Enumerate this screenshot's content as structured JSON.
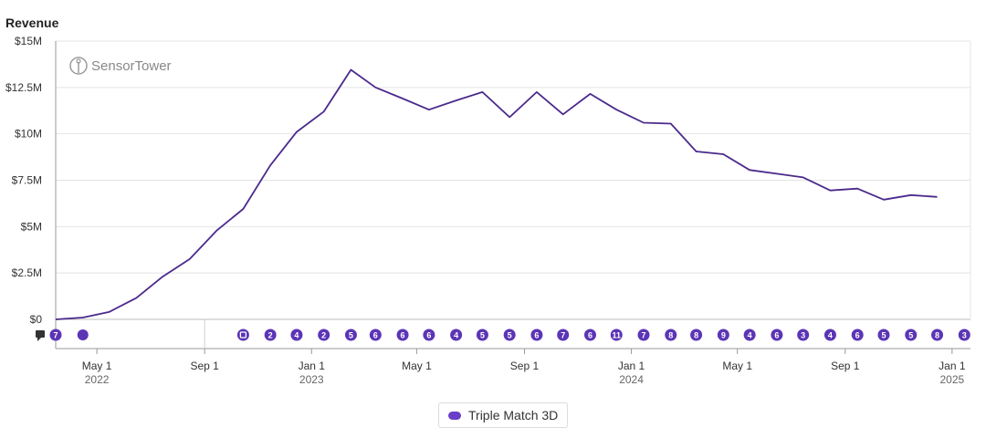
{
  "chart_data": {
    "type": "line",
    "title": "Revenue",
    "watermark": "SensorTower",
    "ylim": [
      0,
      15000000
    ],
    "yticks": [
      {
        "value": 0,
        "label": "$0"
      },
      {
        "value": 2500000,
        "label": "$2.5M"
      },
      {
        "value": 5000000,
        "label": "$5M"
      },
      {
        "value": 7500000,
        "label": "$7.5M"
      },
      {
        "value": 10000000,
        "label": "$10M"
      },
      {
        "value": 12500000,
        "label": "$12.5M"
      },
      {
        "value": 15000000,
        "label": "$15M"
      }
    ],
    "xlim": [
      "2022-03-15",
      "2025-01-22"
    ],
    "xticks": [
      {
        "date": "2022-05-01",
        "label": "May 1",
        "year": "2022"
      },
      {
        "date": "2022-09-01",
        "label": "Sep 1",
        "year": ""
      },
      {
        "date": "2023-01-01",
        "label": "Jan 1",
        "year": "2023"
      },
      {
        "date": "2023-05-01",
        "label": "May 1",
        "year": ""
      },
      {
        "date": "2023-09-01",
        "label": "Sep 1",
        "year": ""
      },
      {
        "date": "2024-01-01",
        "label": "Jan 1",
        "year": "2024"
      },
      {
        "date": "2024-05-01",
        "label": "May 1",
        "year": ""
      },
      {
        "date": "2024-09-01",
        "label": "Sep 1",
        "year": ""
      },
      {
        "date": "2025-01-01",
        "label": "Jan 1",
        "year": "2025"
      }
    ],
    "series": [
      {
        "name": "Triple Match 3D",
        "color": "#4b2a8c",
        "points": [
          {
            "x": "2022-03-15",
            "y": 0
          },
          {
            "x": "2022-04-15",
            "y": 100000
          },
          {
            "x": "2022-05-15",
            "y": 400000
          },
          {
            "x": "2022-06-15",
            "y": 1150000
          },
          {
            "x": "2022-07-15",
            "y": 2300000
          },
          {
            "x": "2022-08-15",
            "y": 3250000
          },
          {
            "x": "2022-09-15",
            "y": 4800000
          },
          {
            "x": "2022-10-15",
            "y": 5950000
          },
          {
            "x": "2022-11-15",
            "y": 8300000
          },
          {
            "x": "2022-12-15",
            "y": 10100000
          },
          {
            "x": "2023-01-15",
            "y": 11200000
          },
          {
            "x": "2023-02-15",
            "y": 13450000
          },
          {
            "x": "2023-03-15",
            "y": 12500000
          },
          {
            "x": "2023-04-15",
            "y": 11900000
          },
          {
            "x": "2023-05-15",
            "y": 11300000
          },
          {
            "x": "2023-06-15",
            "y": 11800000
          },
          {
            "x": "2023-07-15",
            "y": 12250000
          },
          {
            "x": "2023-08-15",
            "y": 10900000
          },
          {
            "x": "2023-09-15",
            "y": 12250000
          },
          {
            "x": "2023-10-15",
            "y": 11050000
          },
          {
            "x": "2023-11-15",
            "y": 12150000
          },
          {
            "x": "2023-12-15",
            "y": 11300000
          },
          {
            "x": "2024-01-15",
            "y": 10600000
          },
          {
            "x": "2024-02-15",
            "y": 10550000
          },
          {
            "x": "2024-03-15",
            "y": 9050000
          },
          {
            "x": "2024-04-15",
            "y": 8900000
          },
          {
            "x": "2024-05-15",
            "y": 8050000
          },
          {
            "x": "2024-06-15",
            "y": 7850000
          },
          {
            "x": "2024-07-15",
            "y": 7650000
          },
          {
            "x": "2024-08-15",
            "y": 6950000
          },
          {
            "x": "2024-09-15",
            "y": 7050000
          },
          {
            "x": "2024-10-15",
            "y": 6450000
          },
          {
            "x": "2024-11-15",
            "y": 6700000
          },
          {
            "x": "2024-12-15",
            "y": 6600000
          }
        ]
      }
    ],
    "event_markers": [
      {
        "x": "2022-03-15",
        "label": "7"
      },
      {
        "x": "2022-04-15",
        "label": ""
      },
      {
        "x": "2022-10-15",
        "label": ""
      },
      {
        "x": "2022-11-15",
        "label": "2"
      },
      {
        "x": "2022-12-15",
        "label": "4"
      },
      {
        "x": "2023-01-15",
        "label": "2"
      },
      {
        "x": "2023-02-15",
        "label": "5"
      },
      {
        "x": "2023-03-15",
        "label": "6"
      },
      {
        "x": "2023-04-15",
        "label": "6"
      },
      {
        "x": "2023-05-15",
        "label": "6"
      },
      {
        "x": "2023-06-15",
        "label": "4"
      },
      {
        "x": "2023-07-15",
        "label": "5"
      },
      {
        "x": "2023-08-15",
        "label": "5"
      },
      {
        "x": "2023-09-15",
        "label": "6"
      },
      {
        "x": "2023-10-15",
        "label": "7"
      },
      {
        "x": "2023-11-15",
        "label": "6"
      },
      {
        "x": "2023-12-15",
        "label": "11"
      },
      {
        "x": "2024-01-15",
        "label": "7"
      },
      {
        "x": "2024-02-15",
        "label": "8"
      },
      {
        "x": "2024-03-15",
        "label": "8"
      },
      {
        "x": "2024-04-15",
        "label": "9"
      },
      {
        "x": "2024-05-15",
        "label": "4"
      },
      {
        "x": "2024-06-15",
        "label": "6"
      },
      {
        "x": "2024-07-15",
        "label": "3"
      },
      {
        "x": "2024-08-15",
        "label": "4"
      },
      {
        "x": "2024-09-15",
        "label": "6"
      },
      {
        "x": "2024-10-15",
        "label": "5"
      },
      {
        "x": "2024-11-15",
        "label": "5"
      },
      {
        "x": "2024-12-15",
        "label": "8"
      },
      {
        "x": "2025-01-15",
        "label": "3"
      }
    ],
    "legend": {
      "placement": "bottom-center",
      "label": "Triple Match 3D"
    },
    "grid": true
  }
}
